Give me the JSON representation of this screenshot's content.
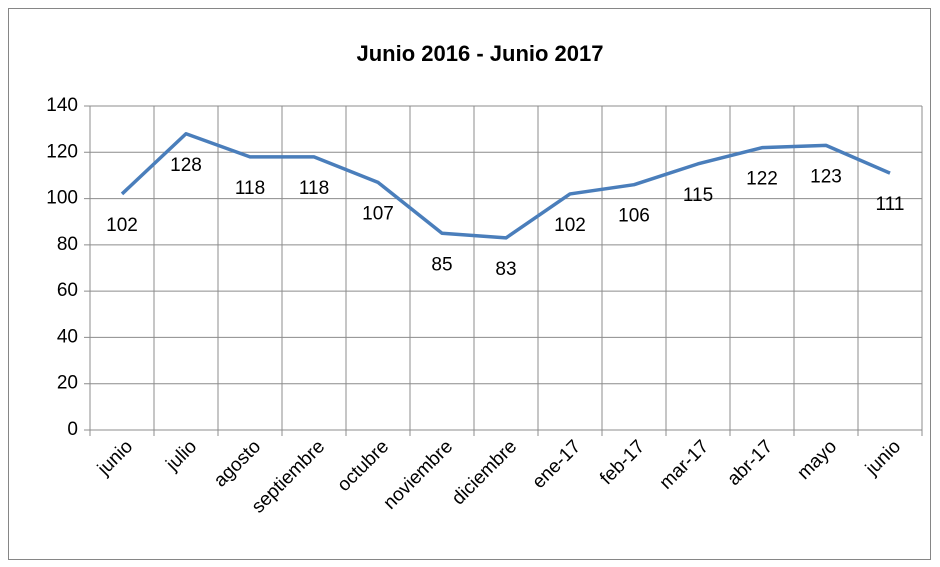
{
  "chart_data": {
    "type": "line",
    "title": "Junio 2016 - Junio 2017",
    "categories": [
      "junio",
      "julio",
      "agosto",
      "septiembre",
      "octubre",
      "noviembre",
      "diciembre",
      "ene-17",
      "feb-17",
      "mar-17",
      "abr-17",
      "mayo",
      "junio"
    ],
    "values": [
      102,
      128,
      118,
      118,
      107,
      85,
      83,
      102,
      106,
      115,
      122,
      123,
      111
    ],
    "color": "#4a7ebb",
    "ylim": [
      0,
      140
    ],
    "yticks": [
      0,
      20,
      40,
      60,
      80,
      100,
      120,
      140
    ],
    "grid": true
  }
}
